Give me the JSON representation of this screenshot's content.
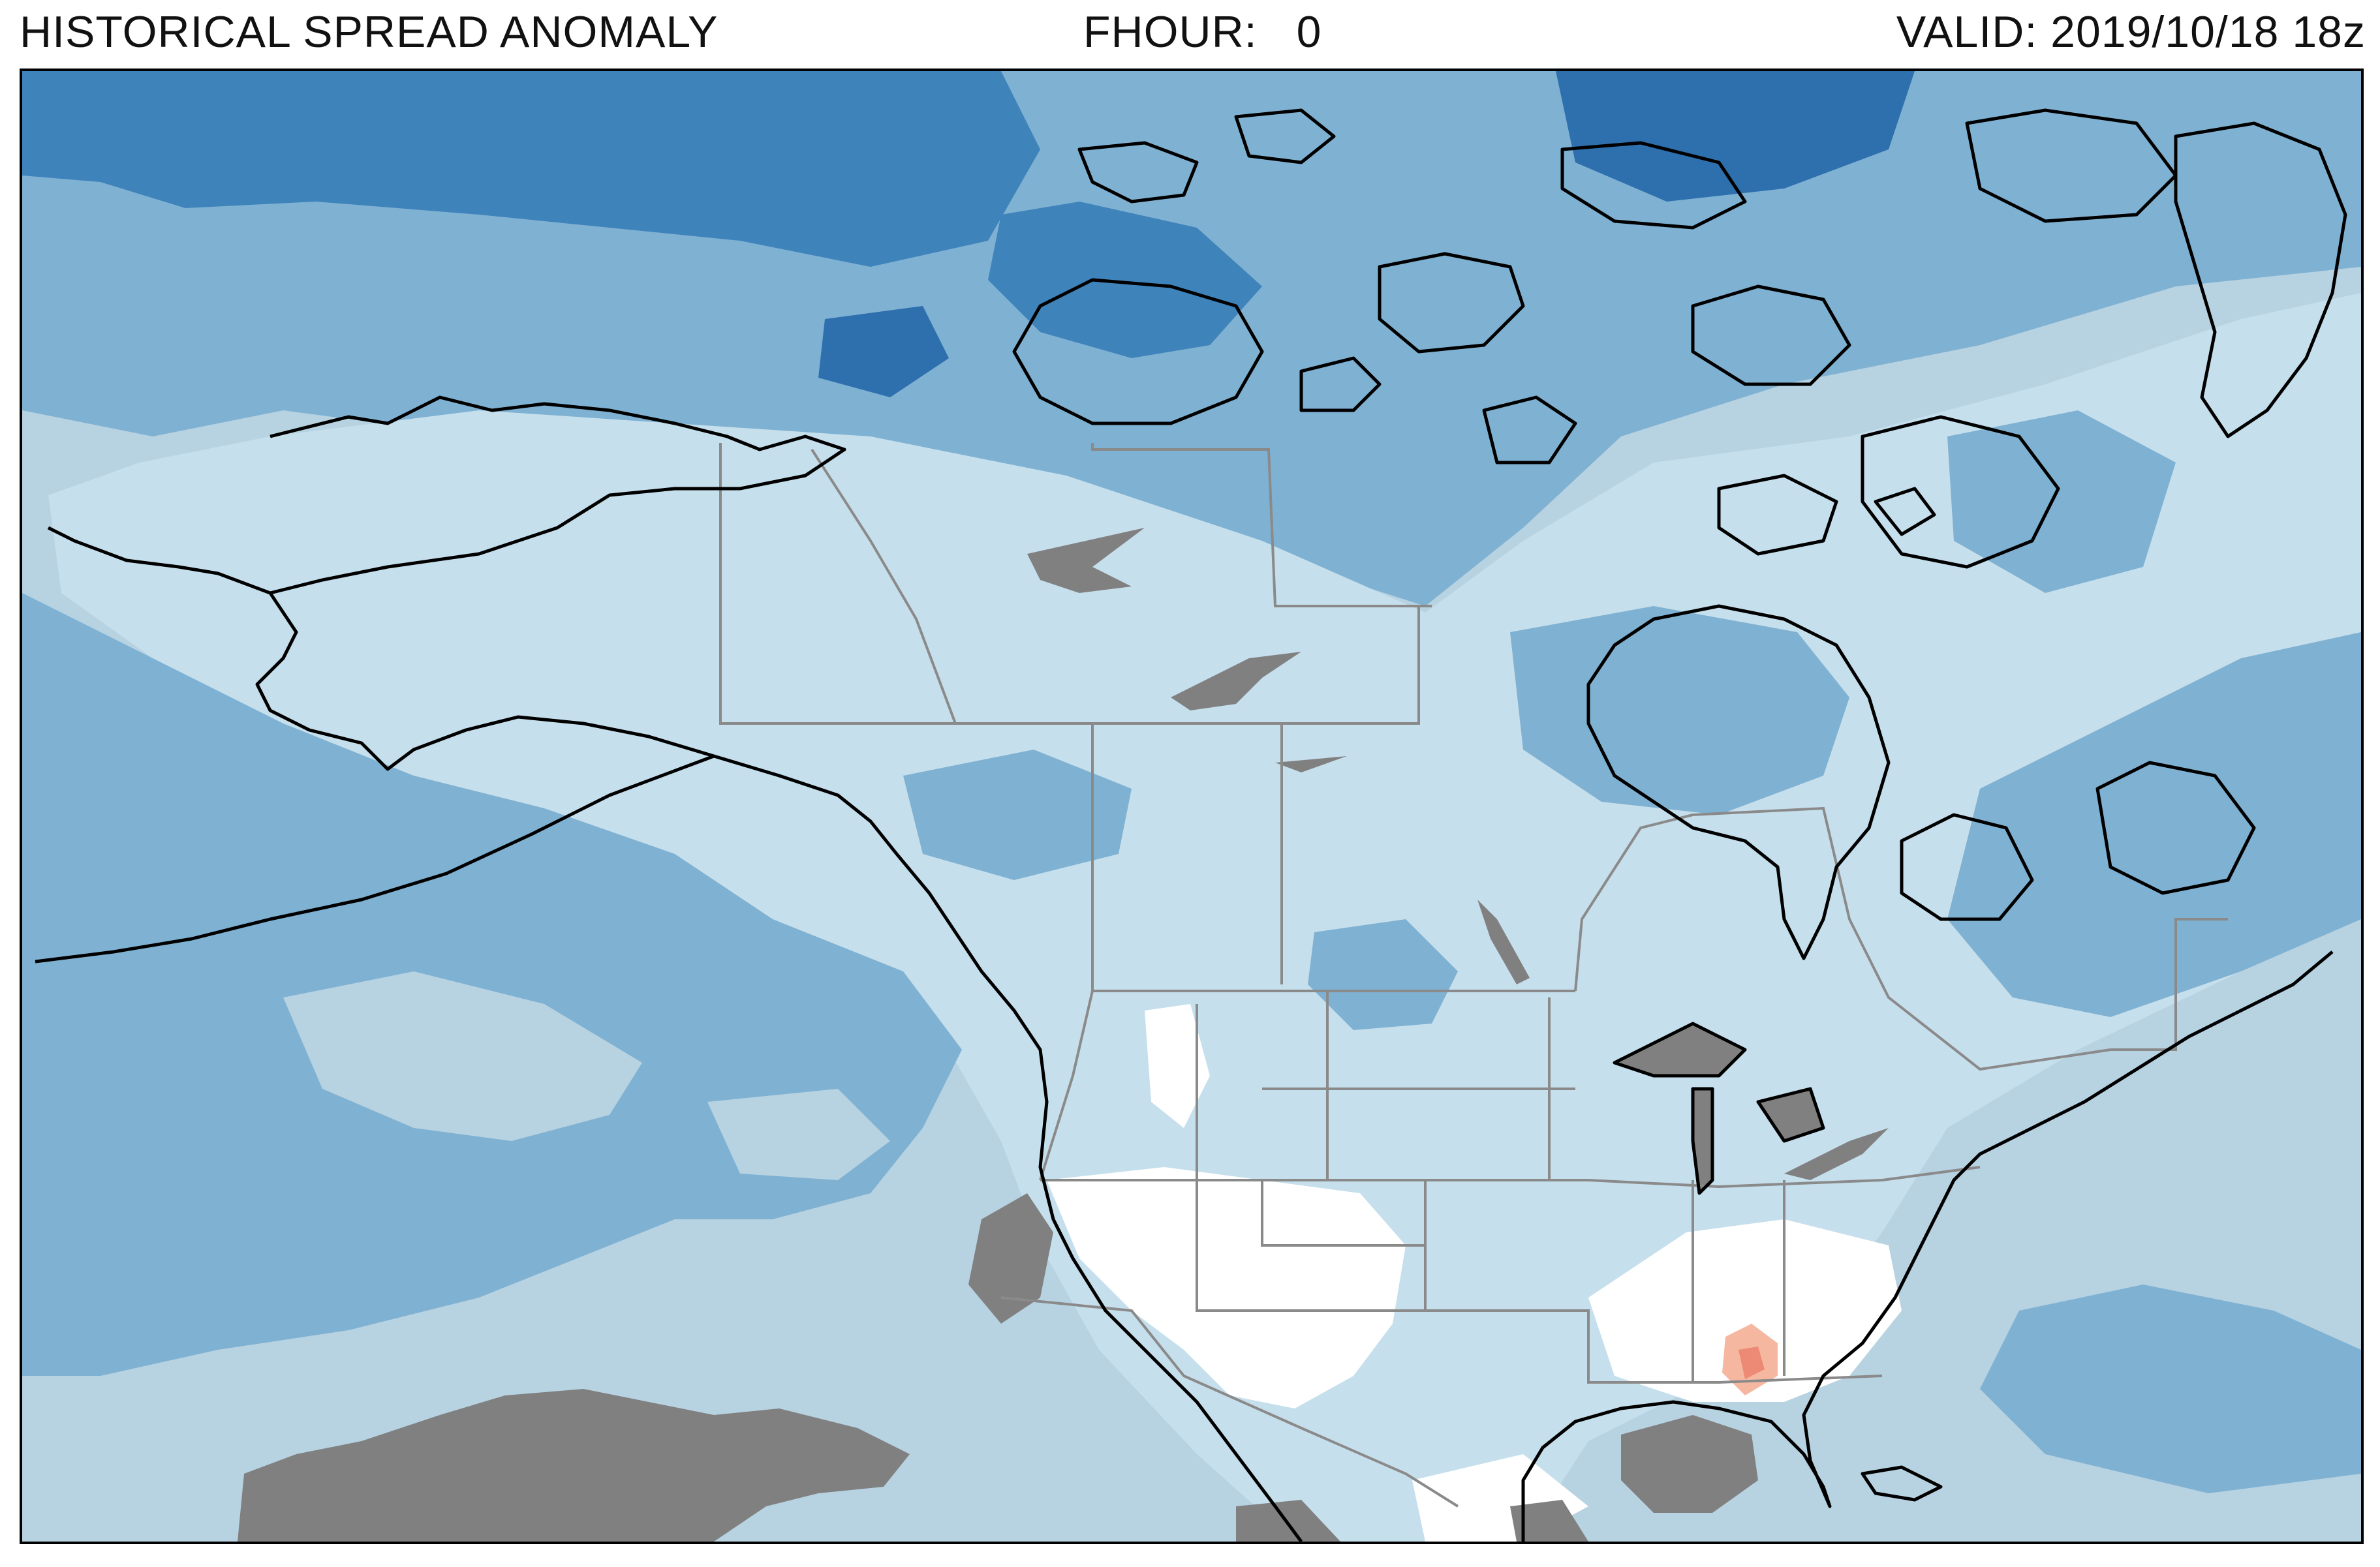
{
  "header": {
    "title": "HISTORICAL SPREAD ANOMALY",
    "fhour_label": "FHOUR:",
    "fhour_value": "0",
    "valid": "VALID: 2019/10/18 18z"
  },
  "map": {
    "region": "North America",
    "projection": "polar stereographic",
    "colors": {
      "ocean_base": "#b7d2e1",
      "light_blue": "#c6dfec",
      "medium_blue": "#7fb1d2",
      "mid_dark_blue": "#5f9cc8",
      "dark_blue": "#3f83bb",
      "deepest_blue": "#2e6fae",
      "near_zero": "#ffffff",
      "missing_gray": "#808080",
      "positive_light": "#f6b7a1",
      "positive_mid": "#ec8a75",
      "coastline": "#000000",
      "political_boundary": "#8a8a8a"
    }
  }
}
